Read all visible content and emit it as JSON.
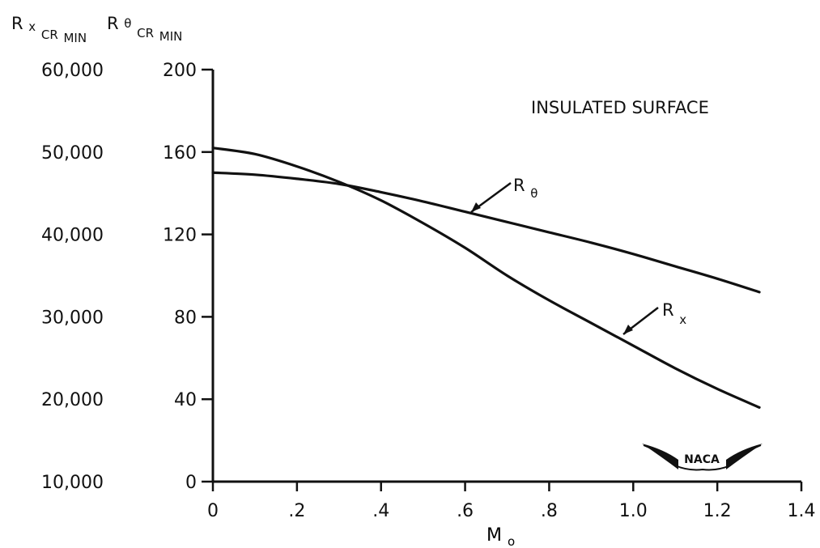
{
  "chart_data": {
    "type": "line",
    "xlabel": "M",
    "xlabel_sub": "o",
    "xlim": [
      0,
      1.4
    ],
    "x_ticks": [
      0,
      0.2,
      0.4,
      0.6,
      0.8,
      1.0,
      1.2,
      1.4
    ],
    "x_tick_labels": [
      "0",
      ".2",
      ".4",
      ".6",
      ".8",
      "1.0",
      "1.2",
      "1.4"
    ],
    "left_axis": {
      "label_main": "R",
      "label_sub_1": "x",
      "label_sub_2": "CR",
      "label_sub_3": "MIN",
      "tick_labels": [
        "10,000",
        "20,000",
        "30,000",
        "40,000",
        "50,000",
        "60,000"
      ],
      "range": [
        10000,
        60000
      ]
    },
    "right_axis": {
      "label_main": "R",
      "label_sub_1": "θ",
      "label_sub_2": "CR",
      "label_sub_3": "MIN",
      "tick_labels": [
        "0",
        "40",
        "80",
        "120",
        "160",
        "200"
      ],
      "range": [
        0,
        200
      ]
    },
    "ylim": [
      0,
      200
    ],
    "annotation": "INSULATED SURFACE",
    "grid": false,
    "series": [
      {
        "name": "R",
        "name_sub": "θ",
        "x": [
          0,
          0.1,
          0.2,
          0.3,
          0.4,
          0.5,
          0.6,
          0.7,
          0.8,
          0.9,
          1.0,
          1.1,
          1.2,
          1.3
        ],
        "y": [
          150,
          149,
          147,
          144.5,
          140.5,
          136,
          131,
          126,
          121,
          116,
          110.5,
          104.5,
          98.5,
          92
        ],
        "label_at": [
          0.65,
          132
        ]
      },
      {
        "name": "R",
        "name_sub": "x",
        "x": [
          0,
          0.1,
          0.2,
          0.3,
          0.4,
          0.5,
          0.6,
          0.7,
          0.8,
          0.9,
          1.0,
          1.1,
          1.2,
          1.3
        ],
        "y": [
          162,
          159,
          153,
          145.5,
          136.5,
          125.5,
          113.5,
          100,
          88,
          77,
          66,
          55,
          45,
          36
        ],
        "label_at": [
          0.99,
          72
        ]
      }
    ],
    "logo_text": "NACA"
  }
}
